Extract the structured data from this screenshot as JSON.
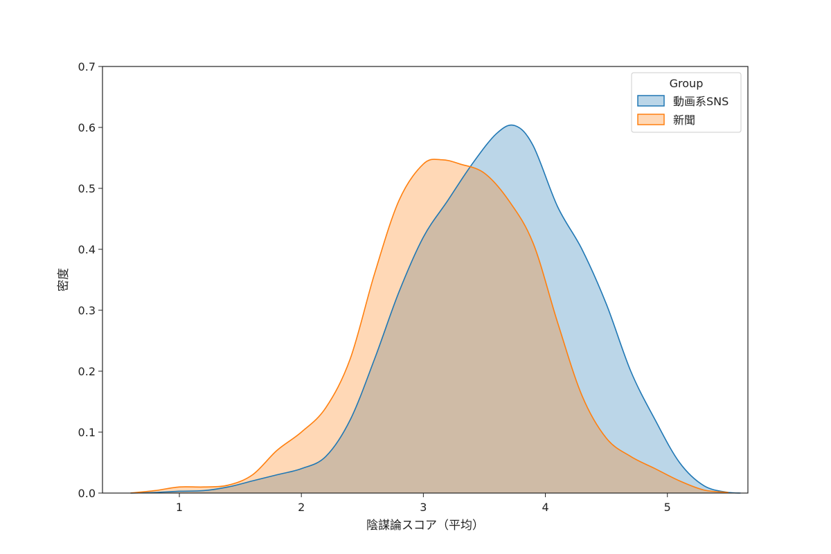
{
  "chart_data": {
    "type": "area",
    "title": "",
    "xlabel": "陰謀論スコア（平均）",
    "ylabel": "密度",
    "xlim": [
      0.37,
      5.66
    ],
    "ylim": [
      0,
      0.7
    ],
    "xticks": [
      1,
      2,
      3,
      4,
      5
    ],
    "yticks": [
      "0.0",
      "0.1",
      "0.2",
      "0.3",
      "0.4",
      "0.5",
      "0.6",
      "0.7"
    ],
    "grid": false,
    "legend": {
      "title": "Group",
      "position": "top-right"
    },
    "series": [
      {
        "name": "動画系SNS",
        "color": "#1f77b4",
        "fill_opacity": 0.3,
        "x": [
          0.6,
          0.8,
          1.0,
          1.2,
          1.4,
          1.6,
          1.8,
          2.0,
          2.2,
          2.4,
          2.6,
          2.8,
          3.0,
          3.2,
          3.4,
          3.6,
          3.75,
          3.9,
          4.1,
          4.3,
          4.5,
          4.7,
          4.9,
          5.1,
          5.3,
          5.5,
          5.6
        ],
        "y": [
          0.0,
          0.001,
          0.003,
          0.004,
          0.01,
          0.02,
          0.03,
          0.04,
          0.06,
          0.12,
          0.22,
          0.33,
          0.42,
          0.48,
          0.54,
          0.59,
          0.603,
          0.57,
          0.47,
          0.4,
          0.31,
          0.2,
          0.12,
          0.05,
          0.012,
          0.001,
          0.0
        ]
      },
      {
        "name": "新聞",
        "color": "#ff7f0e",
        "fill_opacity": 0.3,
        "x": [
          0.6,
          0.8,
          1.0,
          1.2,
          1.4,
          1.6,
          1.8,
          2.0,
          2.2,
          2.4,
          2.6,
          2.8,
          3.0,
          3.15,
          3.3,
          3.5,
          3.7,
          3.9,
          4.1,
          4.3,
          4.5,
          4.7,
          4.9,
          5.1,
          5.3,
          5.5
        ],
        "y": [
          0.0,
          0.004,
          0.01,
          0.01,
          0.013,
          0.03,
          0.07,
          0.1,
          0.14,
          0.22,
          0.36,
          0.48,
          0.54,
          0.547,
          0.54,
          0.525,
          0.48,
          0.41,
          0.28,
          0.16,
          0.09,
          0.06,
          0.04,
          0.02,
          0.005,
          0.001
        ]
      }
    ]
  }
}
